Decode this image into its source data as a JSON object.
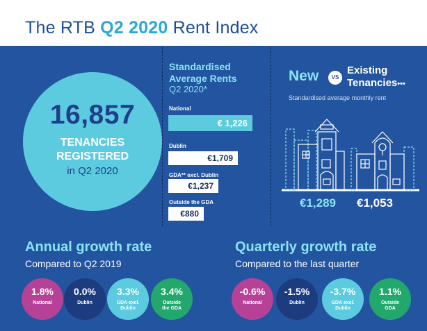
{
  "header": {
    "title_prefix": "The RTB ",
    "title_highlight": "Q2 2020",
    "title_suffix": " Rent Index"
  },
  "tenancies": {
    "number": "16,857",
    "line1": "TENANCIES",
    "line2": "REGISTERED",
    "line3": "in Q2 2020"
  },
  "standardised": {
    "title_line1": "Standardised",
    "title_line2": "Average Rents",
    "subtitle": "Q2 2020*",
    "rents": [
      {
        "label": "National",
        "value": "€ 1,226",
        "amount": 1226
      },
      {
        "label": "Dublin",
        "value": "€1,709",
        "amount": 1709
      },
      {
        "label": "GDA** excl. Dublin",
        "value": "€1,237",
        "amount": 1237
      },
      {
        "label": "Outside the GDA",
        "value": "€880",
        "amount": 880
      }
    ]
  },
  "new_vs_existing": {
    "new_label": "New",
    "vs_label": "VS",
    "existing_line1": "Existing",
    "existing_line2": "Tenancies",
    "existing_dots": "•••",
    "subtitle": "Standardised average monthly rent",
    "new_value": "€1,289",
    "existing_value": "€1,053"
  },
  "annual": {
    "title": "Annual growth rate",
    "subtitle": "Compared to Q2 2019",
    "items": [
      {
        "value": "1.8%",
        "label_line1": "National",
        "label_line2": ""
      },
      {
        "value": "0.0%",
        "label_line1": "Dublin",
        "label_line2": ""
      },
      {
        "value": "3.3%",
        "label_line1": "GDA excl.",
        "label_line2": "Dublin"
      },
      {
        "value": "3.4%",
        "label_line1": "Outside",
        "label_line2": "the GDA"
      }
    ]
  },
  "quarterly": {
    "title": "Quarterly growth rate",
    "subtitle": "Compared to the last quarter",
    "items": [
      {
        "value": "-0.6%",
        "label_line1": "National",
        "label_line2": ""
      },
      {
        "value": "-1.5%",
        "label_line1": "Dublin",
        "label_line2": ""
      },
      {
        "value": "-3.7%",
        "label_line1": "GDA excl.",
        "label_line2": "Dublin"
      },
      {
        "value": "1.1%",
        "label_line1": "Outside",
        "label_line2": "GDA"
      }
    ]
  },
  "colors": {
    "background": "#23549f",
    "accent": "#5ccbe0",
    "national": "#b54296",
    "dublin": "#1d3c80",
    "gda": "#5ccbe0",
    "outside": "#22a86d"
  }
}
